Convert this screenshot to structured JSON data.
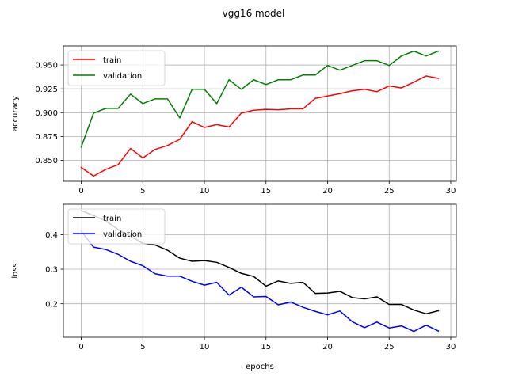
{
  "suptitle": "vgg16 model",
  "chart_data": [
    {
      "type": "line",
      "title": "",
      "xlabel": "",
      "ylabel": "accuracy",
      "grid": true,
      "legend_position": "top-left",
      "xlim": [
        -1.45,
        30.45
      ],
      "ylim": [
        0.828,
        0.97
      ],
      "xticks": [
        0,
        5,
        10,
        15,
        20,
        25,
        30
      ],
      "yticks": [
        0.85,
        0.875,
        0.9,
        0.925,
        0.95
      ],
      "ytick_labels": [
        "0.850",
        "0.875",
        "0.900",
        "0.925",
        "0.950"
      ],
      "x": [
        0,
        1,
        2,
        3,
        4,
        5,
        6,
        7,
        8,
        9,
        10,
        11,
        12,
        13,
        14,
        15,
        16,
        17,
        18,
        19,
        20,
        21,
        22,
        23,
        24,
        25,
        26,
        27,
        28,
        29
      ],
      "series": [
        {
          "name": "train",
          "color": "#ff0000",
          "values": [
            0.8425,
            0.8335,
            0.8405,
            0.8455,
            0.8625,
            0.8525,
            0.8615,
            0.8655,
            0.872,
            0.8905,
            0.8845,
            0.8875,
            0.885,
            0.8995,
            0.9025,
            0.9035,
            0.903,
            0.904,
            0.904,
            0.915,
            0.9175,
            0.92,
            0.923,
            0.9245,
            0.922,
            0.928,
            0.926,
            0.932,
            0.9385,
            0.936
          ]
        },
        {
          "name": "validation",
          "color": "#008000",
          "values": [
            0.864,
            0.8995,
            0.9045,
            0.9045,
            0.9195,
            0.9095,
            0.9145,
            0.9145,
            0.8945,
            0.9245,
            0.9245,
            0.9095,
            0.9345,
            0.9245,
            0.9345,
            0.9295,
            0.9345,
            0.9345,
            0.9395,
            0.9395,
            0.9495,
            0.9445,
            0.9495,
            0.9545,
            0.9545,
            0.9495,
            0.9595,
            0.9645,
            0.9595,
            0.9645
          ]
        }
      ]
    },
    {
      "type": "line",
      "title": "",
      "xlabel": "epochs",
      "ylabel": "loss",
      "grid": true,
      "legend_position": "top-left",
      "xlim": [
        -1.45,
        30.45
      ],
      "ylim": [
        0.103,
        0.488
      ],
      "xticks": [
        0,
        5,
        10,
        15,
        20,
        25,
        30
      ],
      "yticks": [
        0.2,
        0.3,
        0.4
      ],
      "ytick_labels": [
        "0.2",
        "0.3",
        "0.4"
      ],
      "x": [
        0,
        1,
        2,
        3,
        4,
        5,
        6,
        7,
        8,
        9,
        10,
        11,
        12,
        13,
        14,
        15,
        16,
        17,
        18,
        19,
        20,
        21,
        22,
        23,
        24,
        25,
        26,
        27,
        28,
        29
      ],
      "series": [
        {
          "name": "train",
          "color": "#000000",
          "values": [
            0.47,
            0.455,
            0.44,
            0.415,
            0.395,
            0.375,
            0.37,
            0.355,
            0.332,
            0.323,
            0.325,
            0.32,
            0.305,
            0.288,
            0.279,
            0.251,
            0.266,
            0.259,
            0.262,
            0.23,
            0.231,
            0.236,
            0.218,
            0.214,
            0.22,
            0.198,
            0.198,
            0.182,
            0.171,
            0.18
          ]
        },
        {
          "name": "validation",
          "color": "#0000ff",
          "values": [
            0.41,
            0.364,
            0.357,
            0.343,
            0.323,
            0.31,
            0.287,
            0.28,
            0.28,
            0.265,
            0.254,
            0.262,
            0.225,
            0.248,
            0.22,
            0.221,
            0.197,
            0.205,
            0.19,
            0.178,
            0.168,
            0.179,
            0.148,
            0.131,
            0.147,
            0.13,
            0.136,
            0.12,
            0.138,
            0.121
          ]
        }
      ]
    }
  ]
}
